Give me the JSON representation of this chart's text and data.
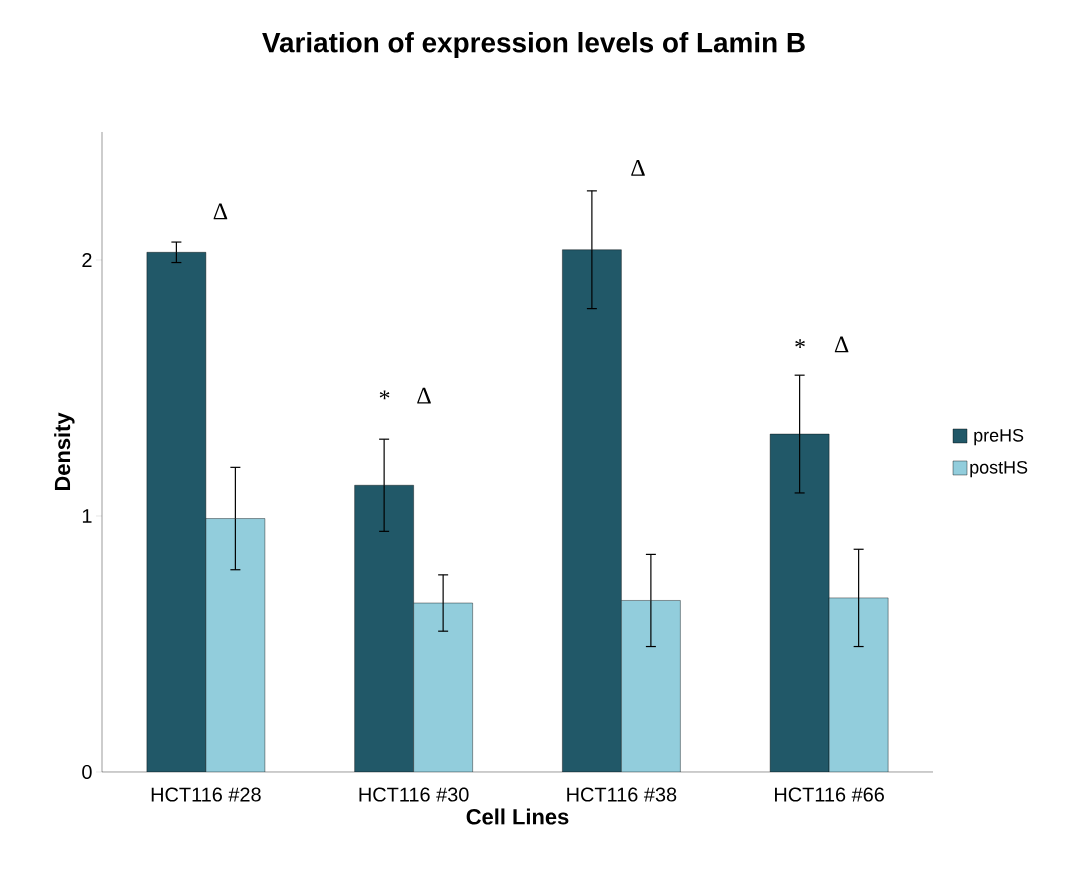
{
  "chart_data": {
    "type": "bar",
    "title": "Variation of expression levels of Lamin B",
    "xlabel": "Cell Lines",
    "ylabel": "Density",
    "categories": [
      "HCT116 #28",
      "HCT116 #30",
      "HCT116 #38",
      "HCT116 #66"
    ],
    "series": [
      {
        "name": "preHS",
        "color": "#215868",
        "values": [
          2.03,
          1.12,
          2.04,
          1.32
        ],
        "errors": [
          0.04,
          0.18,
          0.23,
          0.23
        ]
      },
      {
        "name": "postHS",
        "color": "#92cddc",
        "values": [
          0.99,
          0.66,
          0.67,
          0.68
        ],
        "errors": [
          0.2,
          0.11,
          0.18,
          0.19
        ]
      }
    ],
    "ylim": [
      0,
      2.5
    ],
    "yticks": [
      0,
      1,
      2
    ],
    "legend": "right",
    "grid": false,
    "annotations": [
      "Δ",
      "*",
      "Δ",
      "Δ",
      "*",
      "Δ"
    ]
  }
}
